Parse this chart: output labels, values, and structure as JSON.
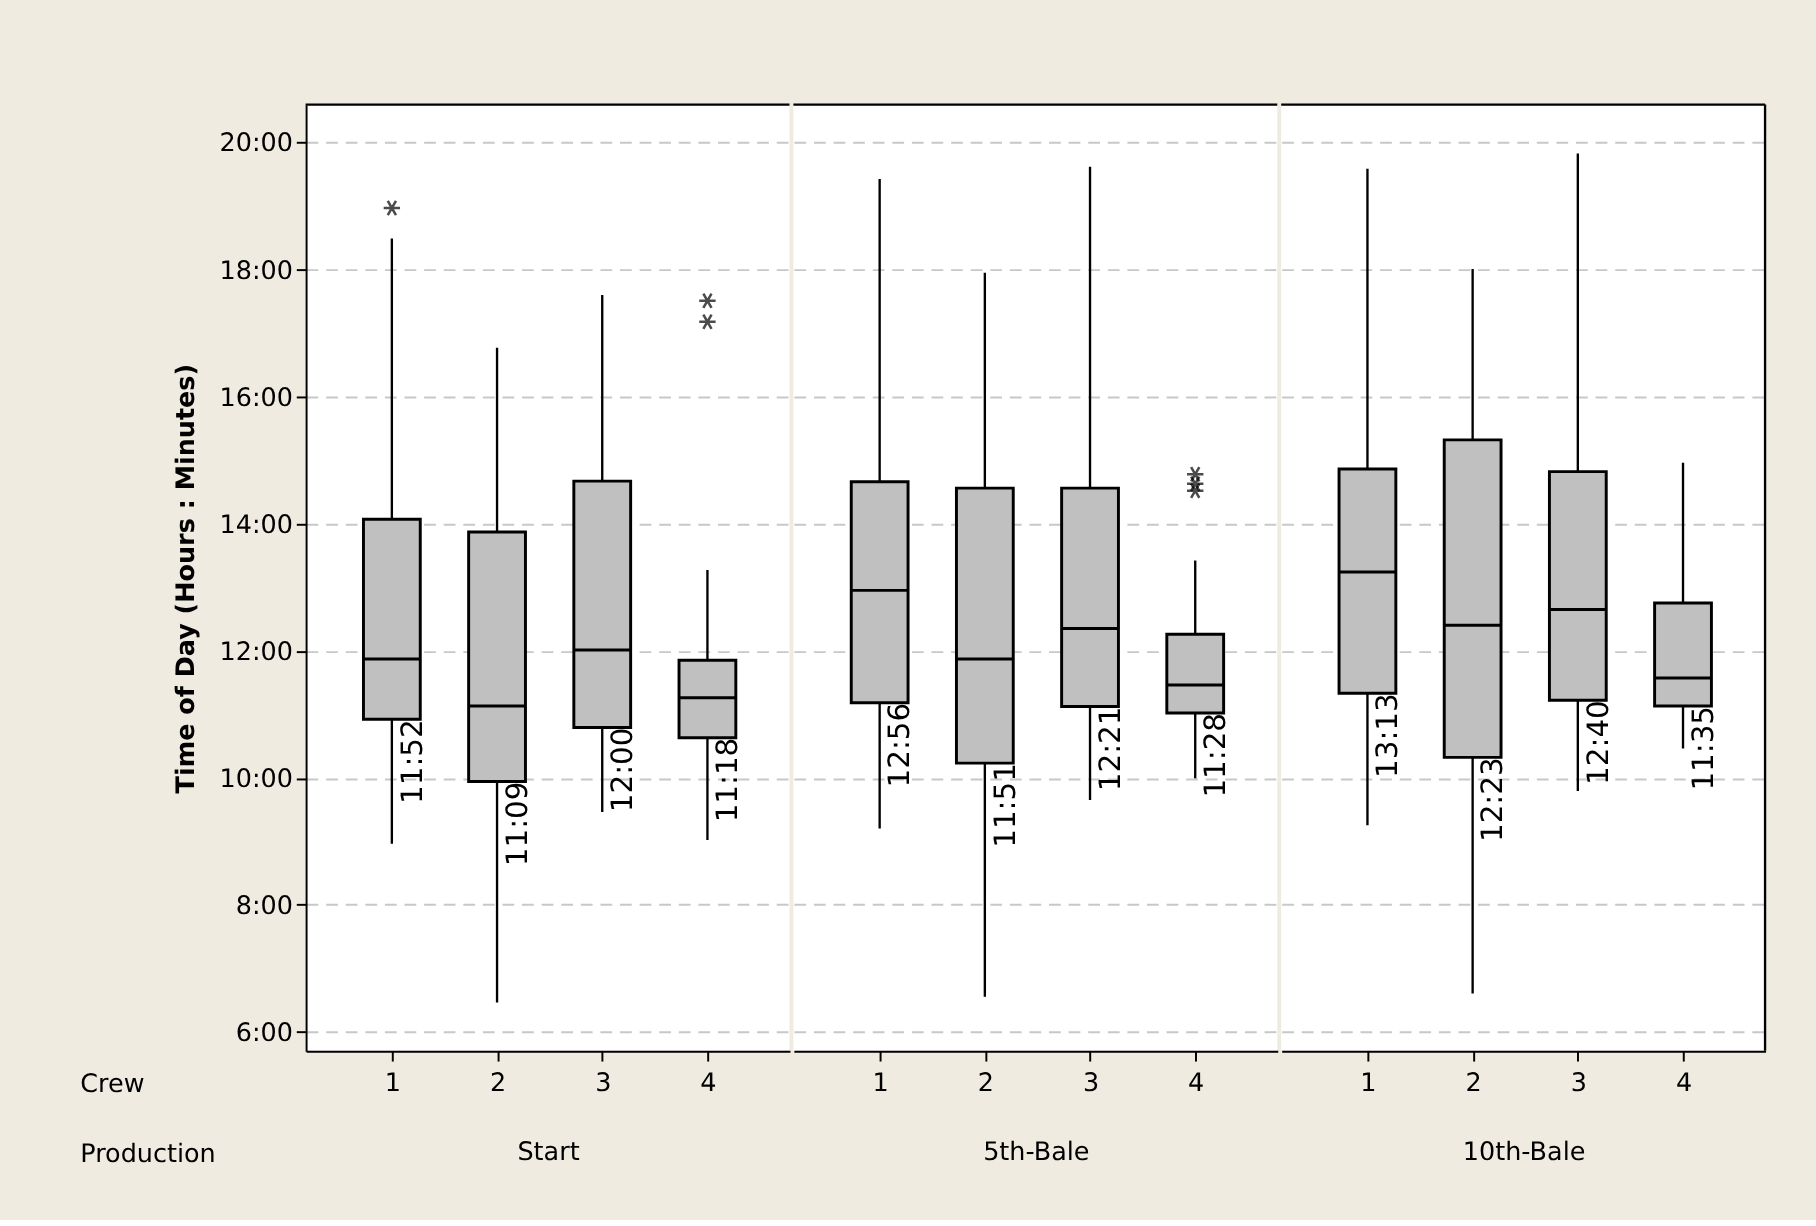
{
  "chart_data": [
    {
      "type": "box",
      "ylabel": "Time of Day (Hours : Minutes)",
      "xlabel": "Start",
      "categories": [
        "1",
        "2",
        "3",
        "4"
      ],
      "color": "#c0c0c0",
      "boxes": [
        {
          "low": 8.96,
          "q1": 10.92,
          "median": 11.87,
          "q3": 14.07,
          "high": 18.49,
          "outliers": [
            18.97
          ]
        },
        {
          "low": 6.46,
          "q1": 9.94,
          "median": 11.13,
          "q3": 13.87,
          "high": 16.77
        },
        {
          "low": 9.46,
          "q1": 10.79,
          "median": 12.01,
          "q3": 14.67,
          "high": 17.6
        },
        {
          "low": 9.02,
          "q1": 10.63,
          "median": 11.26,
          "q3": 11.85,
          "high": 13.27,
          "outliers": [
            17.51,
            17.18
          ]
        }
      ],
      "value_labels": [
        "11:52",
        "11:09",
        "12:00",
        "11:18"
      ],
      "ylim": [
        5.7,
        20.6
      ],
      "yticks": [
        {
          "value": 6,
          "label": "6:00"
        },
        {
          "value": 8,
          "label": "8:00"
        },
        {
          "value": 10,
          "label": "10:00"
        },
        {
          "value": 12,
          "label": "12:00"
        },
        {
          "value": 14,
          "label": "14:00"
        },
        {
          "value": 16,
          "label": "16:00"
        },
        {
          "value": 18,
          "label": "18:00"
        },
        {
          "value": 20,
          "label": "20:00"
        }
      ],
      "grid": "y",
      "annotations": [
        "Crew",
        "Production"
      ]
    },
    {
      "type": "box",
      "xlabel": "5th-Bale",
      "categories": [
        "1",
        "2",
        "3",
        "4"
      ],
      "color": "#c0c0c0",
      "boxes": [
        {
          "low": 9.2,
          "q1": 11.18,
          "median": 12.95,
          "q3": 14.66,
          "high": 19.43
        },
        {
          "low": 6.55,
          "q1": 10.23,
          "median": 11.87,
          "q3": 14.56,
          "high": 17.95
        },
        {
          "low": 9.65,
          "q1": 11.12,
          "median": 12.35,
          "q3": 14.56,
          "high": 19.62
        },
        {
          "low": 9.99,
          "q1": 11.02,
          "median": 11.46,
          "q3": 12.26,
          "high": 13.42,
          "outliers": [
            14.78,
            14.63,
            14.52
          ]
        }
      ],
      "value_labels": [
        "12:56",
        "11:51",
        "12:21",
        "11:28"
      ],
      "ylim": [
        5.7,
        20.6
      ],
      "yticks": [
        6,
        8,
        10,
        12,
        14,
        16,
        18,
        20
      ],
      "grid": "y",
      "tick_labels": "x"
    },
    {
      "type": "box",
      "xlabel": "10th-Bale",
      "categories": [
        "1",
        "2",
        "3",
        "4"
      ],
      "color": "#c0c0c0",
      "boxes": [
        {
          "low": 9.25,
          "q1": 11.33,
          "median": 13.24,
          "q3": 14.86,
          "high": 19.59
        },
        {
          "low": 6.6,
          "q1": 10.32,
          "median": 12.4,
          "q3": 15.32,
          "high": 18.01
        },
        {
          "low": 9.79,
          "q1": 11.22,
          "median": 12.65,
          "q3": 14.82,
          "high": 19.83
        },
        {
          "low": 10.46,
          "q1": 11.13,
          "median": 11.57,
          "q3": 12.75,
          "high": 14.96
        }
      ],
      "value_labels": [
        "13:13",
        "12:23",
        "12:40",
        "11:35"
      ],
      "ylim": [
        5.7,
        20.6
      ],
      "yticks": [
        6,
        8,
        10,
        12,
        14,
        16,
        18,
        20
      ],
      "grid": "y",
      "tick_labels": "x"
    }
  ]
}
